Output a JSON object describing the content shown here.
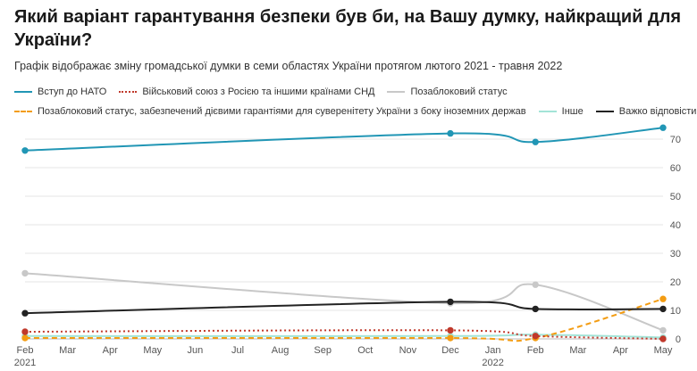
{
  "header": {
    "title": "Який варіант гарантування безпеки був би, на Вашу думку, найкращий для України?",
    "subtitle": "Графік відображає зміну громадської думки в семи областях України протягом лютого 2021 - травня 2022"
  },
  "chart_data": {
    "type": "line",
    "title": "Який варіант гарантування безпеки був би, на Вашу думку, найкращий для України?",
    "subtitle": "Графік відображає зміну громадської думки в семи областях України протягом лютого 2021 - травня 2022",
    "x_ticks": [
      "Feb",
      "Mar",
      "Apr",
      "May",
      "Jun",
      "Jul",
      "Aug",
      "Sep",
      "Oct",
      "Nov",
      "Dec",
      "Jan",
      "Feb",
      "Mar",
      "Apr",
      "May"
    ],
    "x_year_labels": [
      {
        "tick": 0,
        "label": "2021"
      },
      {
        "tick": 11,
        "label": "2022"
      }
    ],
    "x": [
      "2021-02",
      "2021-12",
      "2022-02",
      "2022-05"
    ],
    "y_ticks": [
      0,
      10,
      20,
      30,
      40,
      50,
      60,
      70
    ],
    "ylim": [
      0,
      75
    ],
    "grid": true,
    "legend_position": "top",
    "series": [
      {
        "name": "Вступ до НАТО",
        "color": "#2196b5",
        "dash": "solid",
        "values": [
          66,
          72,
          69,
          74
        ]
      },
      {
        "name": "Військовий союз з Росією та іншими країнами СНД",
        "color": "#c0392b",
        "dash": "dotted",
        "values": [
          2.5,
          3,
          1,
          0
        ]
      },
      {
        "name": "Позаблоковий статус",
        "color": "#c8c8c8",
        "dash": "solid",
        "values": [
          23,
          12.5,
          19,
          3
        ]
      },
      {
        "name": "Позаблоковий статус, забезпечений дієвими гарантіями для суверенітету України з боку іноземних держав",
        "color": "#f39c12",
        "dash": "dashed",
        "values": [
          0.3,
          0.3,
          0.3,
          14
        ]
      },
      {
        "name": "Інше",
        "color": "#a3e4d7",
        "dash": "solid",
        "values": [
          1,
          1,
          1.5,
          0.5
        ]
      },
      {
        "name": "Важко відповісти",
        "color": "#222222",
        "dash": "solid",
        "values": [
          9,
          13,
          10.5,
          10.5
        ]
      }
    ]
  }
}
